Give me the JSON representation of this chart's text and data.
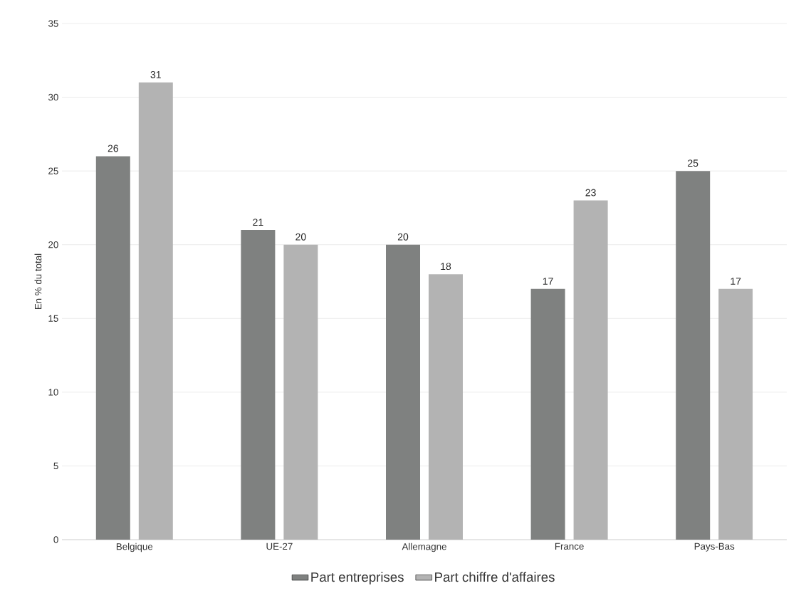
{
  "chart_data": {
    "type": "bar",
    "ylabel": "En % du total",
    "categories": [
      "Belgique",
      "UE-27",
      "Allemagne",
      "France",
      "Pays-Bas"
    ],
    "series": [
      {
        "name": "Part entreprises",
        "color": "#7f8180",
        "values": [
          26,
          21,
          20,
          17,
          25
        ]
      },
      {
        "name": "Part chiffre d'affaires",
        "color": "#b3b3b3",
        "values": [
          31,
          20,
          18,
          23,
          17
        ]
      }
    ],
    "ylim": [
      0,
      35
    ],
    "yticks": [
      0,
      5,
      10,
      15,
      20,
      25,
      30,
      35
    ],
    "grid": "y",
    "legend": "bottom",
    "data_labels": true
  }
}
